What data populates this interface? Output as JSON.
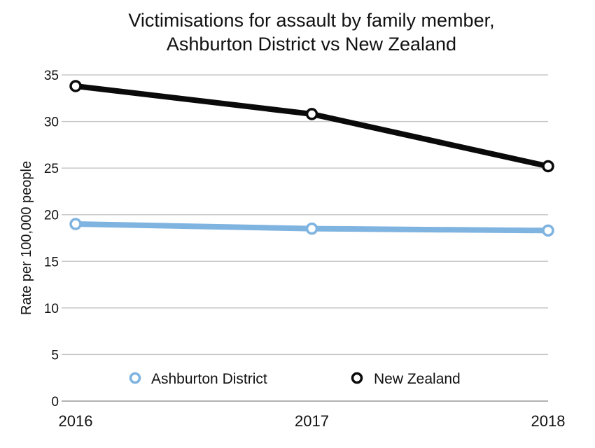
{
  "chart_data": {
    "type": "line",
    "title_lines": [
      "Victimisations for assault by family member,",
      "Ashburton District vs New Zealand"
    ],
    "xlabel": "",
    "ylabel": "Rate per 100,000 people",
    "x": [
      "2016",
      "2017",
      "2018"
    ],
    "y_ticks": [
      0,
      5,
      10,
      15,
      20,
      25,
      30,
      35
    ],
    "ylim": [
      0,
      35
    ],
    "grid": true,
    "legend_position": "bottom-center",
    "series": [
      {
        "name": "Ashburton District",
        "color": "#7fb3e0",
        "values": [
          19.0,
          18.5,
          18.3
        ]
      },
      {
        "name": "New Zealand",
        "color": "#0a0a0a",
        "values": [
          33.8,
          30.8,
          25.2
        ]
      }
    ]
  }
}
